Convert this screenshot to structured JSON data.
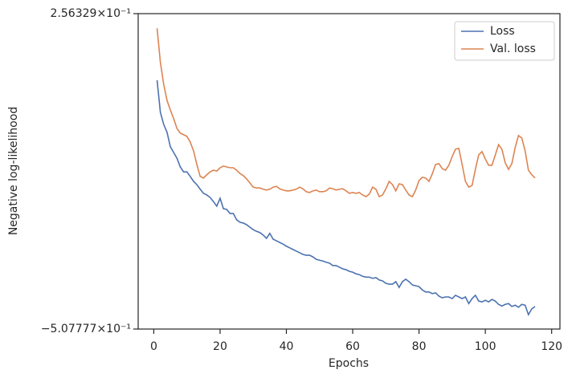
{
  "chart_data": {
    "type": "line",
    "xlabel": "Epochs",
    "ylabel": "Negative log-likelihood",
    "x": [
      1,
      2,
      3,
      4,
      5,
      6,
      7,
      8,
      9,
      10,
      11,
      12,
      13,
      14,
      15,
      16,
      17,
      18,
      19,
      20,
      21,
      22,
      23,
      24,
      25,
      26,
      27,
      28,
      29,
      30,
      31,
      32,
      33,
      34,
      35,
      36,
      37,
      38,
      39,
      40,
      41,
      42,
      43,
      44,
      45,
      46,
      47,
      48,
      49,
      50,
      51,
      52,
      53,
      54,
      55,
      56,
      57,
      58,
      59,
      60,
      61,
      62,
      63,
      64,
      65,
      66,
      67,
      68,
      69,
      70,
      71,
      72,
      73,
      74,
      75,
      76,
      77,
      78,
      79,
      80,
      81,
      82,
      83,
      84,
      85,
      86,
      87,
      88,
      89,
      90,
      91,
      92,
      93,
      94,
      95,
      96,
      97,
      98,
      99,
      100,
      101,
      102,
      103,
      104,
      105,
      106,
      107,
      108,
      109,
      110,
      111,
      112,
      113,
      114,
      115
    ],
    "series": [
      {
        "name": "Loss",
        "color": "#4c72b0",
        "values": [
          0.095,
          0.017,
          -0.012,
          -0.031,
          -0.066,
          -0.08,
          -0.094,
          -0.115,
          -0.127,
          -0.127,
          -0.138,
          -0.15,
          -0.158,
          -0.169,
          -0.179,
          -0.183,
          -0.189,
          -0.199,
          -0.21,
          -0.191,
          -0.216,
          -0.218,
          -0.228,
          -0.228,
          -0.243,
          -0.249,
          -0.251,
          -0.255,
          -0.261,
          -0.267,
          -0.271,
          -0.274,
          -0.28,
          -0.288,
          -0.276,
          -0.29,
          -0.294,
          -0.298,
          -0.302,
          -0.307,
          -0.311,
          -0.315,
          -0.319,
          -0.323,
          -0.327,
          -0.329,
          -0.329,
          -0.333,
          -0.339,
          -0.341,
          -0.343,
          -0.346,
          -0.348,
          -0.354,
          -0.354,
          -0.358,
          -0.362,
          -0.364,
          -0.368,
          -0.37,
          -0.374,
          -0.376,
          -0.38,
          -0.382,
          -0.382,
          -0.385,
          -0.383,
          -0.389,
          -0.391,
          -0.397,
          -0.399,
          -0.399,
          -0.393,
          -0.407,
          -0.393,
          -0.387,
          -0.393,
          -0.401,
          -0.403,
          -0.405,
          -0.413,
          -0.418,
          -0.418,
          -0.422,
          -0.42,
          -0.428,
          -0.432,
          -0.43,
          -0.43,
          -0.434,
          -0.426,
          -0.43,
          -0.434,
          -0.43,
          -0.446,
          -0.434,
          -0.426,
          -0.44,
          -0.442,
          -0.438,
          -0.442,
          -0.436,
          -0.44,
          -0.448,
          -0.452,
          -0.448,
          -0.446,
          -0.453,
          -0.45,
          -0.455,
          -0.448,
          -0.45,
          -0.473,
          -0.459,
          -0.453
        ]
      },
      {
        "name": "Val. loss",
        "color": "#dd8452",
        "values": [
          0.221,
          0.138,
          0.085,
          0.046,
          0.023,
          0.002,
          -0.022,
          -0.033,
          -0.037,
          -0.041,
          -0.055,
          -0.076,
          -0.109,
          -0.138,
          -0.142,
          -0.134,
          -0.127,
          -0.123,
          -0.125,
          -0.117,
          -0.113,
          -0.115,
          -0.117,
          -0.117,
          -0.123,
          -0.131,
          -0.136,
          -0.144,
          -0.154,
          -0.164,
          -0.166,
          -0.166,
          -0.169,
          -0.171,
          -0.169,
          -0.164,
          -0.162,
          -0.168,
          -0.171,
          -0.173,
          -0.173,
          -0.171,
          -0.169,
          -0.164,
          -0.168,
          -0.175,
          -0.177,
          -0.173,
          -0.171,
          -0.175,
          -0.175,
          -0.173,
          -0.166,
          -0.168,
          -0.171,
          -0.169,
          -0.168,
          -0.173,
          -0.179,
          -0.177,
          -0.179,
          -0.177,
          -0.183,
          -0.187,
          -0.181,
          -0.164,
          -0.169,
          -0.187,
          -0.183,
          -0.168,
          -0.15,
          -0.158,
          -0.173,
          -0.156,
          -0.158,
          -0.171,
          -0.183,
          -0.187,
          -0.171,
          -0.148,
          -0.14,
          -0.142,
          -0.15,
          -0.132,
          -0.109,
          -0.107,
          -0.119,
          -0.123,
          -0.111,
          -0.09,
          -0.072,
          -0.07,
          -0.109,
          -0.15,
          -0.164,
          -0.16,
          -0.121,
          -0.086,
          -0.078,
          -0.096,
          -0.111,
          -0.111,
          -0.086,
          -0.061,
          -0.072,
          -0.105,
          -0.121,
          -0.107,
          -0.068,
          -0.039,
          -0.045,
          -0.076,
          -0.123,
          -0.134,
          -0.142
        ]
      }
    ],
    "xlim": [
      -4.7,
      122.5
    ],
    "xticks": [
      0,
      20,
      40,
      60,
      80,
      100,
      120
    ],
    "ylim": [
      -0.507777,
      0.256329
    ],
    "yticks": [
      {
        "value": -0.507777,
        "label": "−5.07777×10⁻¹"
      },
      {
        "value": 0.256329,
        "label": "2.56329×10⁻¹"
      }
    ],
    "legend": "upper right"
  }
}
